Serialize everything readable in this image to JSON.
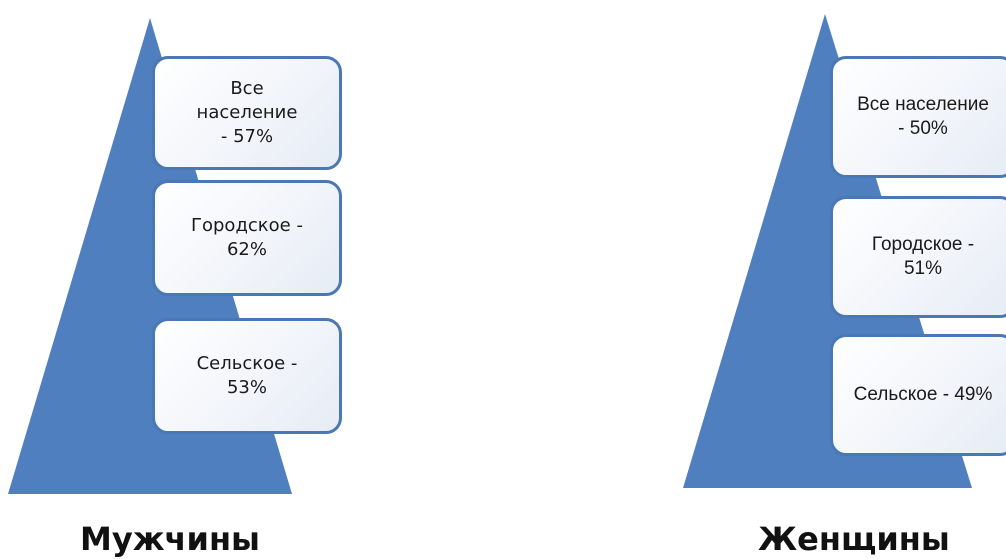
{
  "colors": {
    "pyramid": "#4f7fbf",
    "box_border": "#4a78b4"
  },
  "pyramids": [
    {
      "label": "Мужчины",
      "levels": [
        {
          "text": "Все\nнаселение\n- 57%",
          "value": 57
        },
        {
          "text": "Городское -\n62%",
          "value": 62
        },
        {
          "text": "Сельское -\n53%",
          "value": 53
        }
      ]
    },
    {
      "label": "Женщины",
      "levels": [
        {
          "text": "Все население\n- 50%",
          "value": 50
        },
        {
          "text": "Городское -\n51%",
          "value": 51
        },
        {
          "text": "Сельское - 49%",
          "value": 49
        }
      ]
    }
  ]
}
